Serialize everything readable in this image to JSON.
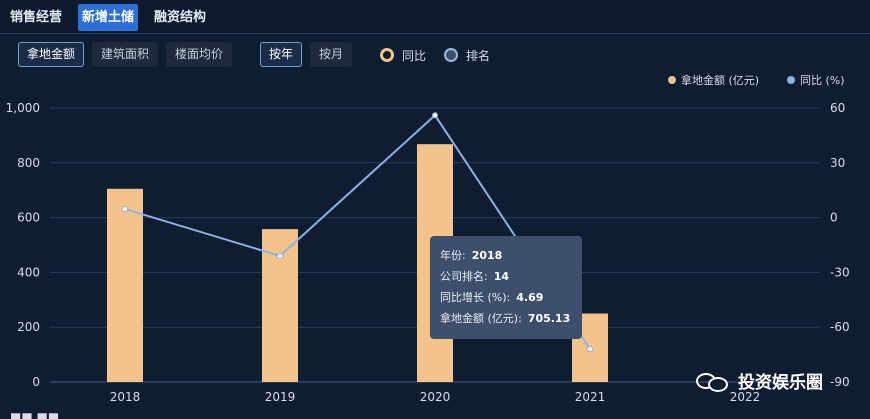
{
  "tabs": [
    {
      "label": "销售经营",
      "active": false
    },
    {
      "label": "新增土储",
      "active": true
    },
    {
      "label": "融资结构",
      "active": false
    }
  ],
  "metric_buttons": [
    {
      "label": "拿地金额",
      "active": true
    },
    {
      "label": "建筑面积",
      "active": false
    },
    {
      "label": "楼面均价",
      "active": false
    }
  ],
  "period_buttons": [
    {
      "label": "按年",
      "active": true
    },
    {
      "label": "按月",
      "active": false
    }
  ],
  "radios": [
    {
      "label": "同比",
      "selected": true
    },
    {
      "label": "排名",
      "selected": false
    }
  ],
  "legend": [
    {
      "label": "拿地金额 (亿元)",
      "color": "#f2c38a"
    },
    {
      "label": "同比 (%)",
      "color": "#8fb0e3"
    }
  ],
  "chart_data": {
    "type": "bar+line",
    "categories": [
      "2018",
      "2019",
      "2020",
      "2021",
      "2022"
    ],
    "series": [
      {
        "name": "拿地金额 (亿元)",
        "type": "bar",
        "axis": "left",
        "color": "#f2c38a",
        "values": [
          705.13,
          558,
          868,
          250,
          null
        ]
      },
      {
        "name": "同比 (%)",
        "type": "line",
        "axis": "right",
        "color": "#8fb0e3",
        "values": [
          4.69,
          -21,
          56,
          -72,
          null
        ]
      }
    ],
    "y_left": {
      "min": 0,
      "max": 1000,
      "ticks": [
        "0",
        "200",
        "400",
        "600",
        "800",
        "1,000"
      ]
    },
    "y_right": {
      "min": -90,
      "max": 60,
      "ticks": [
        "-90",
        "-60",
        "-30",
        "0",
        "30",
        "60"
      ]
    },
    "grid": true,
    "legend_position": "top-right"
  },
  "tooltip": {
    "rows": [
      {
        "label": "年份:",
        "value": "2018"
      },
      {
        "label": "公司排名:",
        "value": "14"
      },
      {
        "label": "同比增长 (%):",
        "value": "4.69"
      },
      {
        "label": "拿地金额 (亿元):",
        "value": "705.13"
      }
    ]
  },
  "watermark": {
    "text": "投资娱乐圈"
  },
  "bottom_fragment": "■■ ■■"
}
